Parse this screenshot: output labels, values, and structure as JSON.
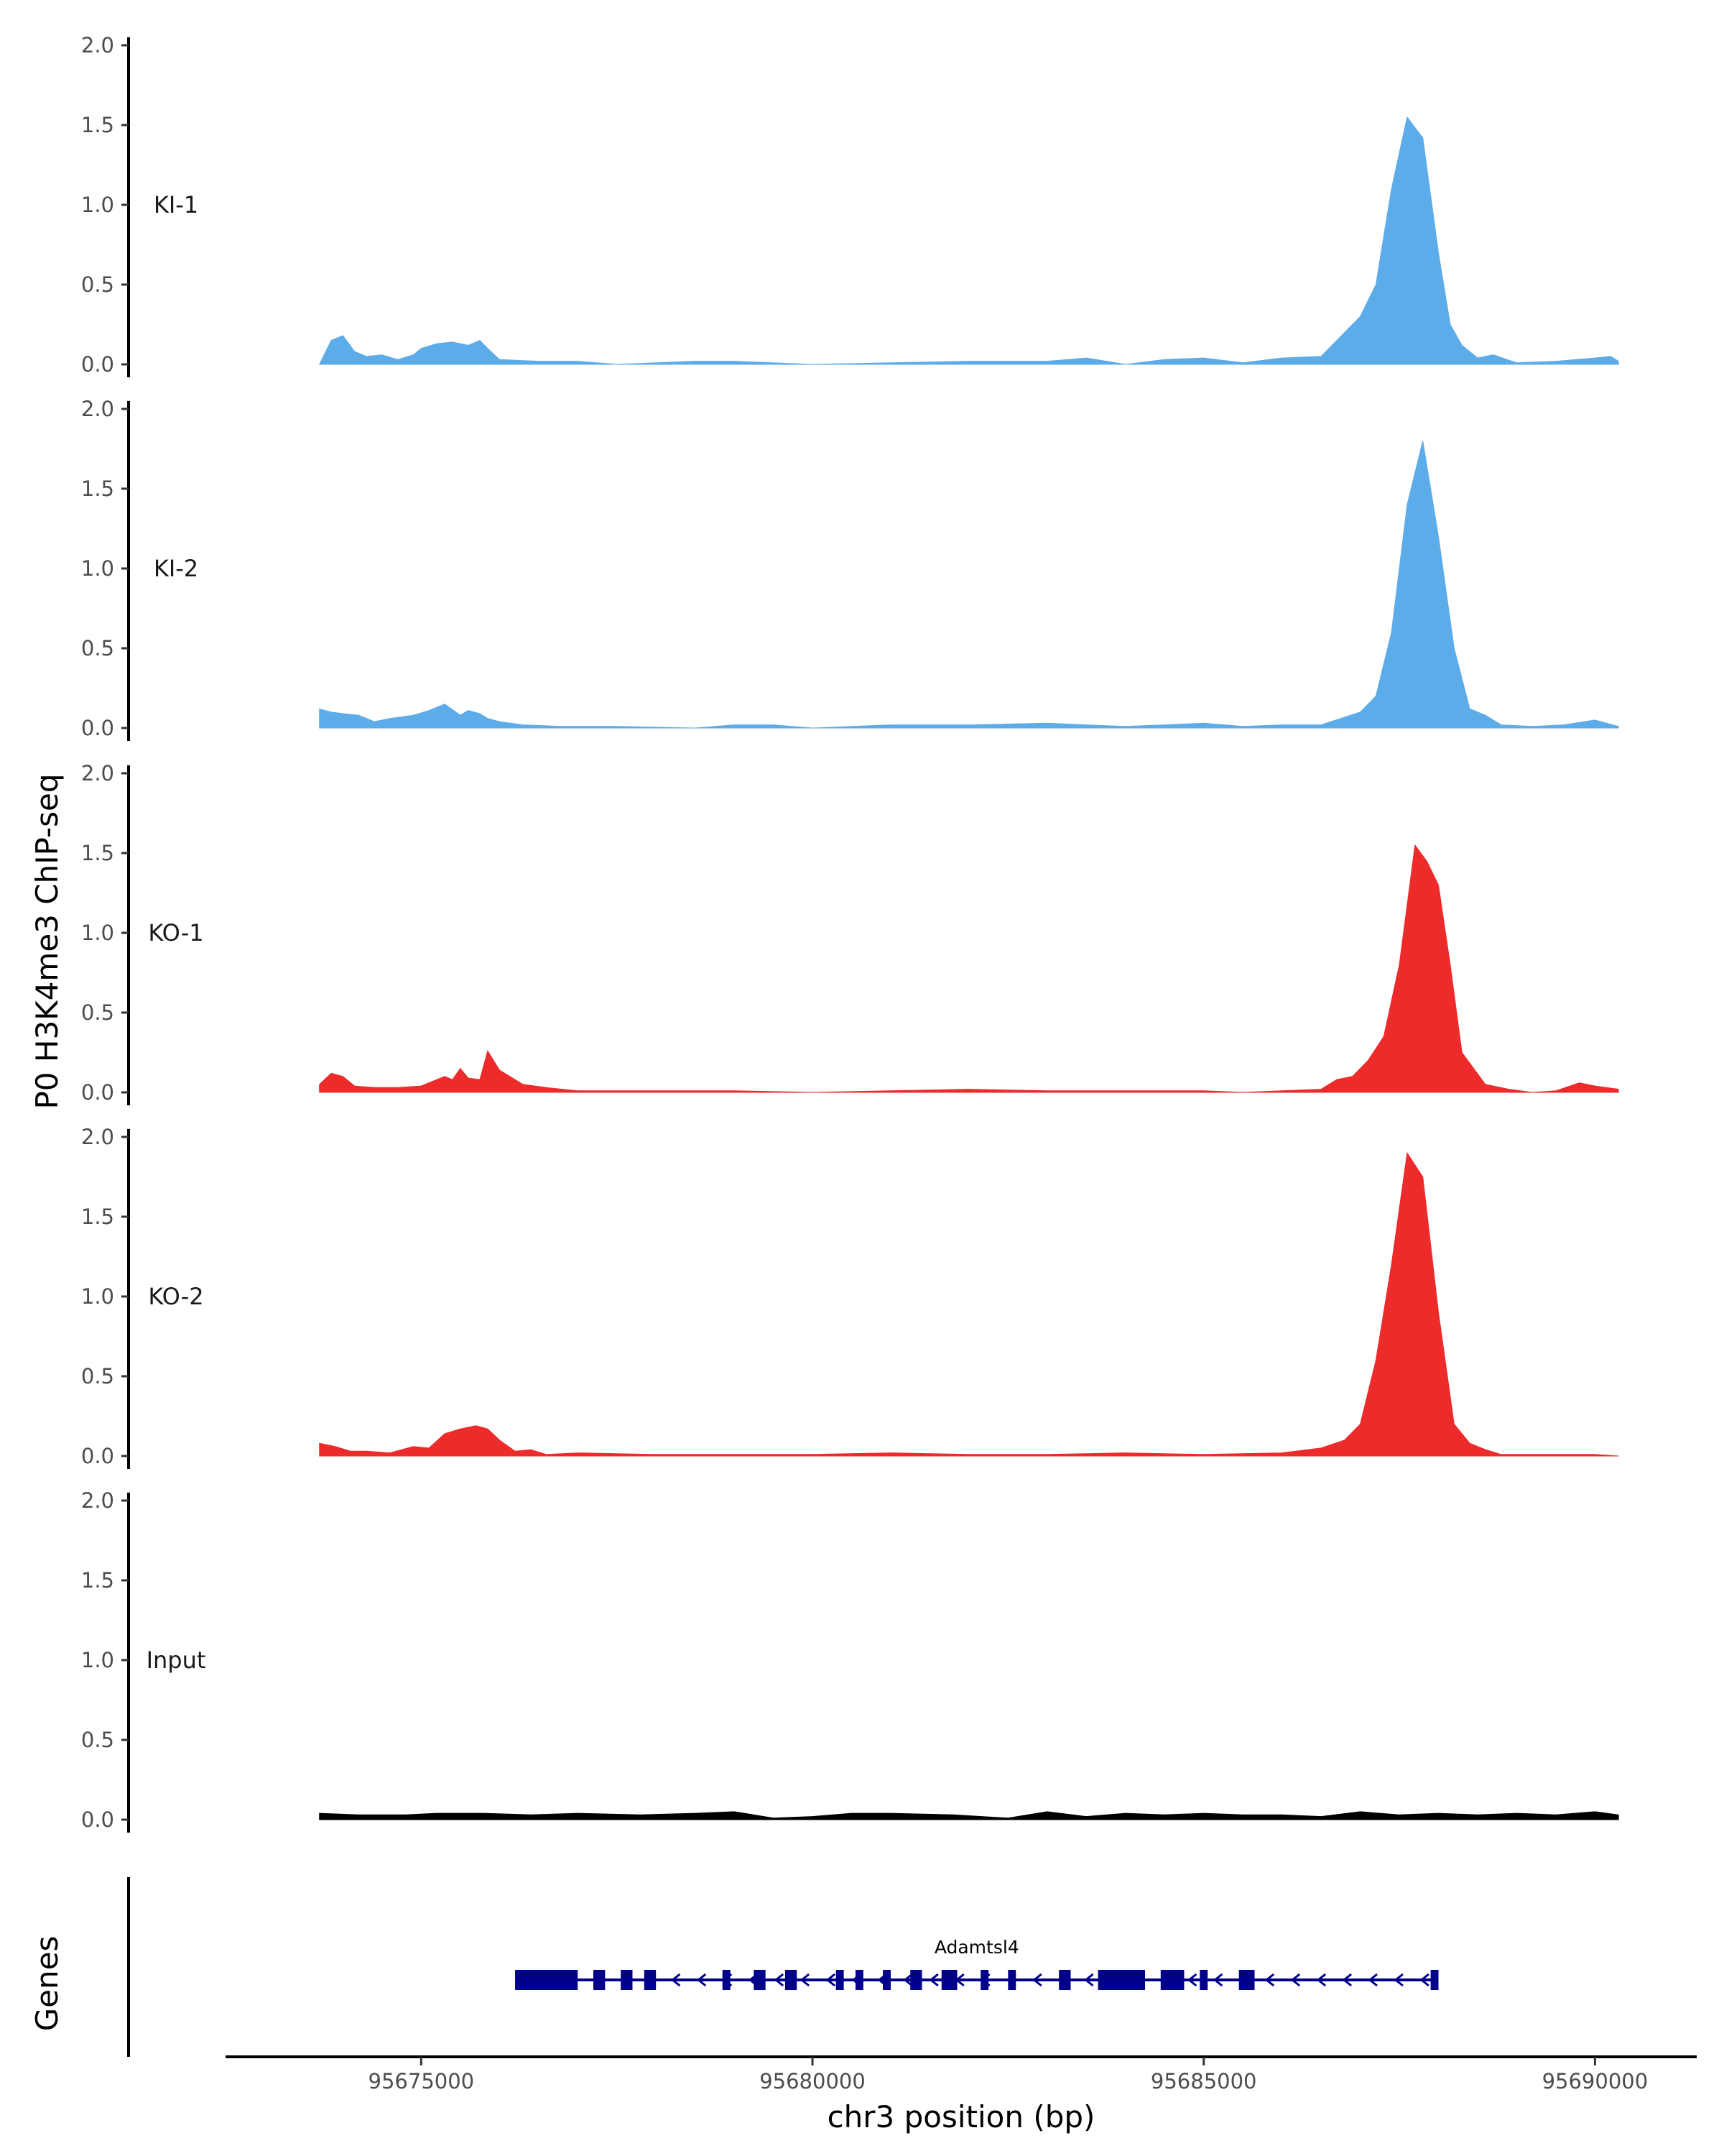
{
  "chart_data": {
    "type": "area",
    "ylabel": "P0 H3K4me3 ChIP-seq",
    "xlabel": "chr3 position (bp)",
    "genes_label": "Genes",
    "xlim": [
      95672500,
      95691300
    ],
    "x_ticks": [
      95675000,
      95680000,
      95685000,
      95690000
    ],
    "x_tick_labels": [
      "95675000",
      "95680000",
      "95685000",
      "95690000"
    ],
    "ylim": [
      0,
      2.05
    ],
    "y_ticks": [
      0,
      0.5,
      1,
      1.5,
      2
    ],
    "y_tick_labels": [
      "0.0",
      "0.5",
      "1.0",
      "1.5",
      "2.0"
    ],
    "gene": {
      "name": "Adamtsl4",
      "start": 95676200,
      "end": 95688000,
      "strand": "-",
      "color": "#00008b",
      "exons": [
        [
          95676200,
          95677000
        ],
        [
          95677200,
          95677350
        ],
        [
          95677550,
          95677700
        ],
        [
          95677850,
          95678000
        ],
        [
          95678850,
          95678950
        ],
        [
          95679250,
          95679400
        ],
        [
          95679650,
          95679800
        ],
        [
          95680300,
          95680400
        ],
        [
          95680550,
          95680650
        ],
        [
          95680900,
          95681000
        ],
        [
          95681250,
          95681400
        ],
        [
          95681650,
          95681850
        ],
        [
          95682150,
          95682250
        ],
        [
          95682500,
          95682600
        ],
        [
          95683150,
          95683300
        ],
        [
          95683650,
          95684250
        ],
        [
          95684450,
          95684750
        ],
        [
          95684950,
          95685050
        ],
        [
          95685450,
          95685650
        ],
        [
          95687900,
          95688000
        ]
      ]
    },
    "series": [
      {
        "name": "KI-1",
        "color": "#5dacea",
        "x": [
          95673700,
          95673850,
          95674000,
          95674150,
          95674300,
          95674500,
          95674700,
          95674900,
          95675000,
          95675200,
          95675400,
          95675600,
          95675750,
          95675850,
          95676000,
          95676500,
          95677000,
          95677500,
          95678500,
          95679000,
          95680000,
          95681000,
          95682000,
          95683000,
          95683500,
          95684000,
          95684500,
          95685000,
          95685500,
          95686000,
          95686500,
          95686800,
          95687000,
          95687200,
          95687400,
          95687600,
          95687800,
          95688000,
          95688150,
          95688300,
          95688500,
          95688700,
          95689000,
          95689500,
          95690000,
          95690200,
          95690300
        ],
        "values": [
          0.0,
          0.15,
          0.18,
          0.08,
          0.05,
          0.06,
          0.03,
          0.06,
          0.1,
          0.13,
          0.14,
          0.12,
          0.15,
          0.1,
          0.03,
          0.02,
          0.02,
          0.0,
          0.02,
          0.02,
          0.0,
          0.01,
          0.02,
          0.02,
          0.04,
          0.0,
          0.03,
          0.04,
          0.01,
          0.04,
          0.05,
          0.2,
          0.3,
          0.5,
          1.1,
          1.55,
          1.42,
          0.7,
          0.25,
          0.12,
          0.04,
          0.06,
          0.01,
          0.02,
          0.04,
          0.05,
          0.02
        ]
      },
      {
        "name": "KI-2",
        "color": "#5dacea",
        "x": [
          95673700,
          95673850,
          95674000,
          95674200,
          95674400,
          95674600,
          95674900,
          95675100,
          95675300,
          95675500,
          95675600,
          95675750,
          95675850,
          95676000,
          95676300,
          95676800,
          95677500,
          95678500,
          95679000,
          95679500,
          95680000,
          95681000,
          95682000,
          95683000,
          95683500,
          95684000,
          95684500,
          95685000,
          95685500,
          95686000,
          95686500,
          95687000,
          95687200,
          95687400,
          95687600,
          95687800,
          95688000,
          95688200,
          95688400,
          95688600,
          95688800,
          95689200,
          95689600,
          95690000,
          95690300
        ],
        "values": [
          0.12,
          0.1,
          0.09,
          0.08,
          0.04,
          0.06,
          0.08,
          0.11,
          0.15,
          0.08,
          0.11,
          0.09,
          0.06,
          0.04,
          0.02,
          0.01,
          0.01,
          0.0,
          0.02,
          0.02,
          0.0,
          0.02,
          0.02,
          0.03,
          0.02,
          0.01,
          0.02,
          0.03,
          0.01,
          0.02,
          0.02,
          0.1,
          0.2,
          0.6,
          1.4,
          1.8,
          1.2,
          0.5,
          0.12,
          0.08,
          0.02,
          0.01,
          0.02,
          0.05,
          0.01
        ]
      },
      {
        "name": "KO-1",
        "color": "#ed2b2b",
        "x": [
          95673700,
          95673850,
          95674000,
          95674150,
          95674400,
          95674700,
          95675000,
          95675200,
          95675300,
          95675400,
          95675500,
          95675600,
          95675750,
          95675850,
          95676000,
          95676300,
          95676600,
          95677000,
          95678000,
          95679000,
          95680000,
          95681000,
          95682000,
          95683000,
          95684000,
          95685000,
          95685500,
          95686000,
          95686500,
          95686700,
          95686900,
          95687100,
          95687300,
          95687500,
          95687700,
          95687850,
          95688000,
          95688150,
          95688300,
          95688600,
          95688900,
          95689200,
          95689500,
          95689800,
          95690000,
          95690300
        ],
        "values": [
          0.05,
          0.12,
          0.1,
          0.04,
          0.03,
          0.03,
          0.04,
          0.08,
          0.1,
          0.08,
          0.15,
          0.09,
          0.08,
          0.26,
          0.14,
          0.05,
          0.03,
          0.01,
          0.01,
          0.01,
          0.0,
          0.01,
          0.02,
          0.01,
          0.01,
          0.01,
          0.0,
          0.01,
          0.02,
          0.08,
          0.1,
          0.2,
          0.35,
          0.8,
          1.55,
          1.45,
          1.3,
          0.8,
          0.25,
          0.05,
          0.02,
          0.0,
          0.01,
          0.06,
          0.04,
          0.02
        ]
      },
      {
        "name": "KO-2",
        "color": "#ed2b2b",
        "x": [
          95673700,
          95673900,
          95674100,
          95674300,
          95674600,
          95674900,
          95675100,
          95675300,
          95675500,
          95675700,
          95675850,
          95676000,
          95676200,
          95676400,
          95676600,
          95677000,
          95678000,
          95679000,
          95680000,
          95681000,
          95682000,
          95683000,
          95684000,
          95685000,
          95686000,
          95686500,
          95686800,
          95687000,
          95687200,
          95687400,
          95687600,
          95687800,
          95688000,
          95688200,
          95688400,
          95688600,
          95688800,
          95689200,
          95690000,
          95690300
        ],
        "values": [
          0.08,
          0.06,
          0.03,
          0.03,
          0.02,
          0.06,
          0.05,
          0.14,
          0.17,
          0.19,
          0.17,
          0.1,
          0.03,
          0.04,
          0.01,
          0.02,
          0.01,
          0.01,
          0.01,
          0.02,
          0.01,
          0.01,
          0.02,
          0.01,
          0.02,
          0.05,
          0.1,
          0.2,
          0.6,
          1.2,
          1.9,
          1.75,
          0.9,
          0.2,
          0.08,
          0.04,
          0.01,
          0.01,
          0.01,
          0.0
        ]
      },
      {
        "name": "Input",
        "color": "#000000",
        "x": [
          95673700,
          95674200,
          95674800,
          95675200,
          95675800,
          95676400,
          95677000,
          95677800,
          95678500,
          95679000,
          95679500,
          95680000,
          95680500,
          95681000,
          95681800,
          95682500,
          95683000,
          95683500,
          95684000,
          95684500,
          95685000,
          95685500,
          95686000,
          95686500,
          95687000,
          95687500,
          95688000,
          95688500,
          95689000,
          95689500,
          95690000,
          95690300
        ],
        "values": [
          0.04,
          0.03,
          0.03,
          0.04,
          0.04,
          0.03,
          0.04,
          0.03,
          0.04,
          0.05,
          0.01,
          0.02,
          0.04,
          0.04,
          0.03,
          0.01,
          0.05,
          0.02,
          0.04,
          0.03,
          0.04,
          0.03,
          0.03,
          0.02,
          0.05,
          0.03,
          0.04,
          0.03,
          0.04,
          0.03,
          0.05,
          0.03
        ]
      }
    ]
  }
}
